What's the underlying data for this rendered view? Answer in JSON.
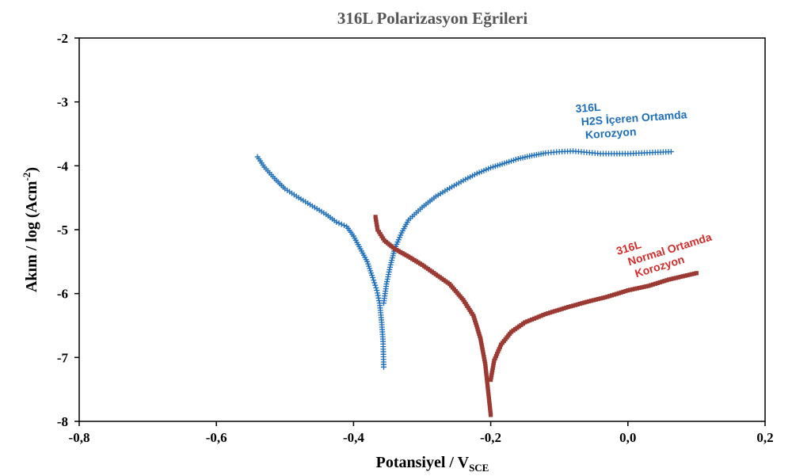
{
  "chart_data": {
    "type": "scatter",
    "title": "316L Polarizasyon Eğrileri",
    "xlabel_main": "Potansiyel / V",
    "xlabel_sub": "SCE",
    "ylabel_main": "Akım / log (Acm",
    "ylabel_sup": "-2",
    "ylabel_close": ")",
    "xlim": [
      -0.8,
      0.2
    ],
    "ylim": [
      -8,
      -2
    ],
    "x_ticks": [
      -0.8,
      -0.6,
      -0.4,
      -0.2,
      0.0,
      0.2
    ],
    "x_tick_labels": [
      "-0,8",
      "-0,6",
      "-0,4",
      "-0,2",
      "0,0",
      "0,2"
    ],
    "y_ticks": [
      -2,
      -3,
      -4,
      -5,
      -6,
      -7,
      -8
    ],
    "y_tick_labels": [
      "-2",
      "-3",
      "-4",
      "-5",
      "-6",
      "-7",
      "-8"
    ],
    "grid": false,
    "legend": "none",
    "series": [
      {
        "marker": "plus",
        "color": "#1f6fb8",
        "annotation": [
          "316L",
          "H2S İçeren Ortamda",
          "Korozyon"
        ],
        "branches": [
          [
            [
              -0.54,
              -3.86
            ],
            [
              -0.53,
              -4.02
            ],
            [
              -0.515,
              -4.2
            ],
            [
              -0.5,
              -4.36
            ],
            [
              -0.48,
              -4.5
            ],
            [
              -0.46,
              -4.63
            ],
            [
              -0.44,
              -4.76
            ],
            [
              -0.425,
              -4.88
            ],
            [
              -0.41,
              -4.95
            ],
            [
              -0.4,
              -5.1
            ],
            [
              -0.39,
              -5.3
            ],
            [
              -0.38,
              -5.5
            ],
            [
              -0.372,
              -5.75
            ],
            [
              -0.366,
              -5.95
            ],
            [
              -0.362,
              -6.15
            ],
            [
              -0.359,
              -6.45
            ],
            [
              -0.357,
              -6.75
            ],
            [
              -0.356,
              -7.15
            ]
          ],
          [
            [
              -0.356,
              -6.15
            ],
            [
              -0.352,
              -5.85
            ],
            [
              -0.346,
              -5.55
            ],
            [
              -0.34,
              -5.3
            ],
            [
              -0.33,
              -5.05
            ],
            [
              -0.32,
              -4.85
            ],
            [
              -0.3,
              -4.65
            ],
            [
              -0.28,
              -4.48
            ],
            [
              -0.26,
              -4.35
            ],
            [
              -0.24,
              -4.23
            ],
            [
              -0.22,
              -4.12
            ],
            [
              -0.2,
              -4.03
            ],
            [
              -0.18,
              -3.96
            ],
            [
              -0.16,
              -3.89
            ],
            [
              -0.14,
              -3.84
            ],
            [
              -0.12,
              -3.8
            ],
            [
              -0.1,
              -3.78
            ],
            [
              -0.08,
              -3.77
            ],
            [
              -0.06,
              -3.79
            ],
            [
              -0.04,
              -3.81
            ],
            [
              -0.02,
              -3.81
            ],
            [
              0.0,
              -3.81
            ],
            [
              0.02,
              -3.8
            ],
            [
              0.04,
              -3.79
            ],
            [
              0.063,
              -3.78
            ]
          ]
        ]
      },
      {
        "marker": "square",
        "color": "#9b3a32",
        "annotation": [
          "316L",
          "Normal Ortamda",
          "Korozyon"
        ],
        "branches": [
          [
            [
              -0.368,
              -4.8
            ],
            [
              -0.365,
              -5.0
            ],
            [
              -0.355,
              -5.17
            ],
            [
              -0.34,
              -5.3
            ],
            [
              -0.32,
              -5.42
            ],
            [
              -0.3,
              -5.55
            ],
            [
              -0.28,
              -5.7
            ],
            [
              -0.26,
              -5.85
            ],
            [
              -0.24,
              -6.1
            ],
            [
              -0.225,
              -6.35
            ],
            [
              -0.215,
              -6.7
            ],
            [
              -0.208,
              -7.1
            ],
            [
              -0.204,
              -7.5
            ],
            [
              -0.2,
              -7.9
            ]
          ],
          [
            [
              -0.2,
              -7.35
            ],
            [
              -0.195,
              -7.05
            ],
            [
              -0.185,
              -6.8
            ],
            [
              -0.17,
              -6.6
            ],
            [
              -0.15,
              -6.45
            ],
            [
              -0.12,
              -6.32
            ],
            [
              -0.09,
              -6.22
            ],
            [
              -0.06,
              -6.13
            ],
            [
              -0.03,
              -6.05
            ],
            [
              0.0,
              -5.95
            ],
            [
              0.03,
              -5.88
            ],
            [
              0.06,
              -5.78
            ],
            [
              0.08,
              -5.73
            ],
            [
              0.1,
              -5.68
            ]
          ]
        ]
      }
    ]
  }
}
